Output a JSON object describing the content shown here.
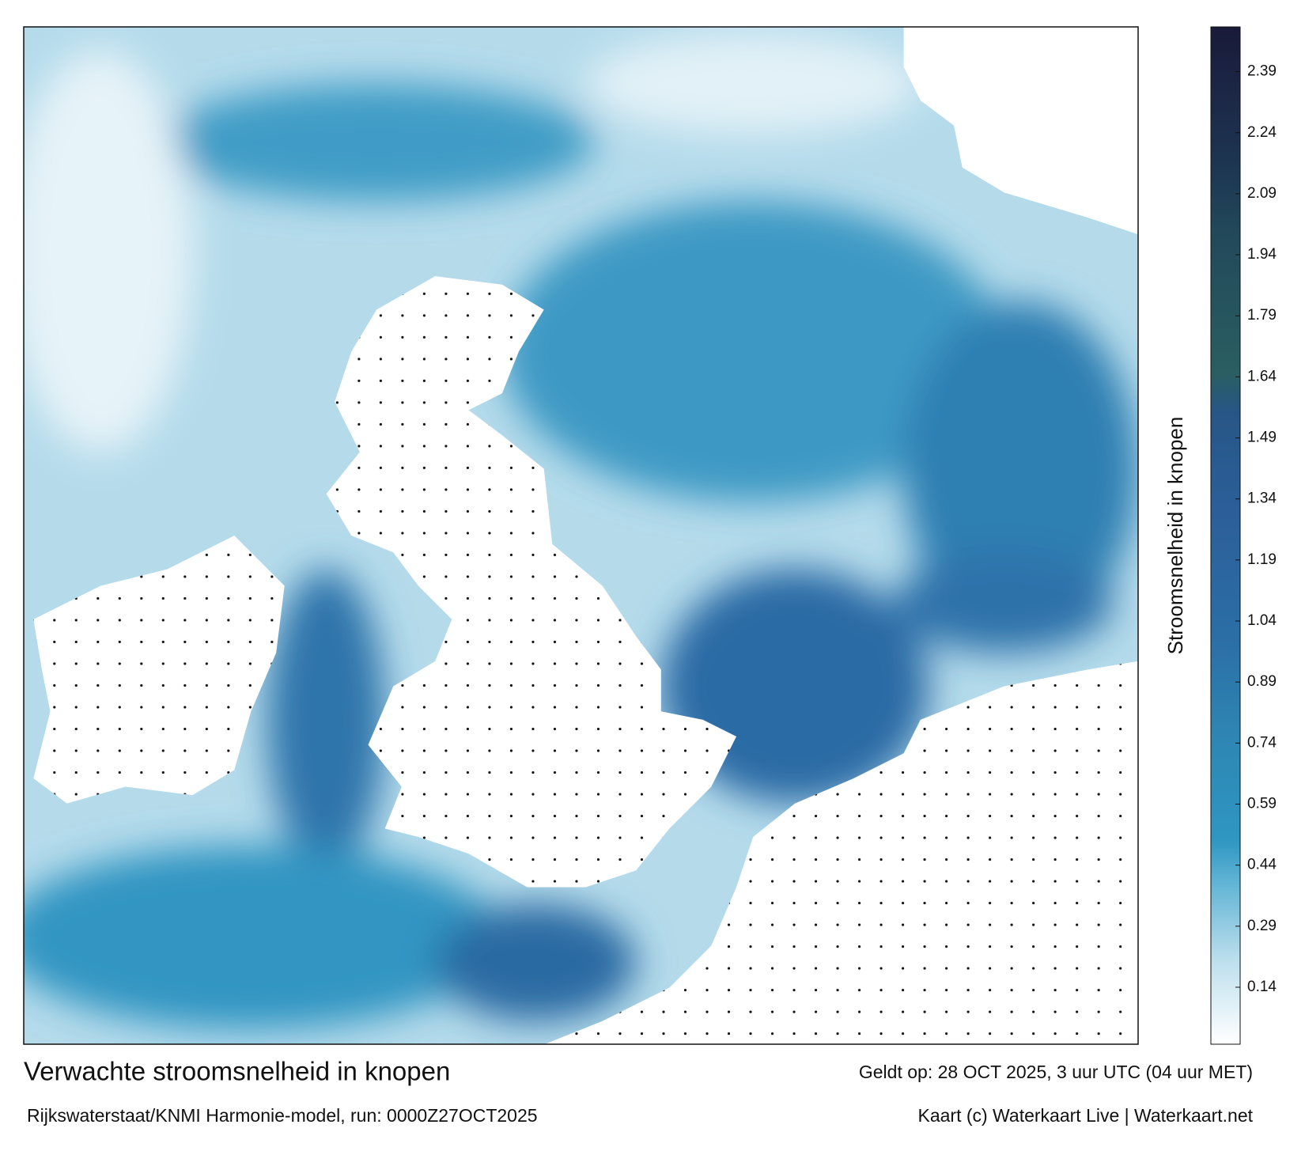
{
  "map": {
    "title": "Verwachte stroomsnelheid in knopen",
    "subtitle": "Rijkswaterstaat/KNMI Harmonie-model, run: 0000Z27OCT2025",
    "valid_time": "Geldt op: 28 OCT 2025, 3 uur UTC (04 uur MET)",
    "credit": "Kaart (c) Waterkaart Live | Waterkaart.net",
    "colorbar": {
      "label": "Stroomsnelheid in knopen",
      "lim": [
        0,
        2.5
      ],
      "ticks": [
        0.14,
        0.29,
        0.44,
        0.59,
        0.74,
        0.89,
        1.04,
        1.19,
        1.34,
        1.49,
        1.64,
        1.79,
        1.94,
        2.09,
        2.24,
        2.39
      ]
    }
  }
}
